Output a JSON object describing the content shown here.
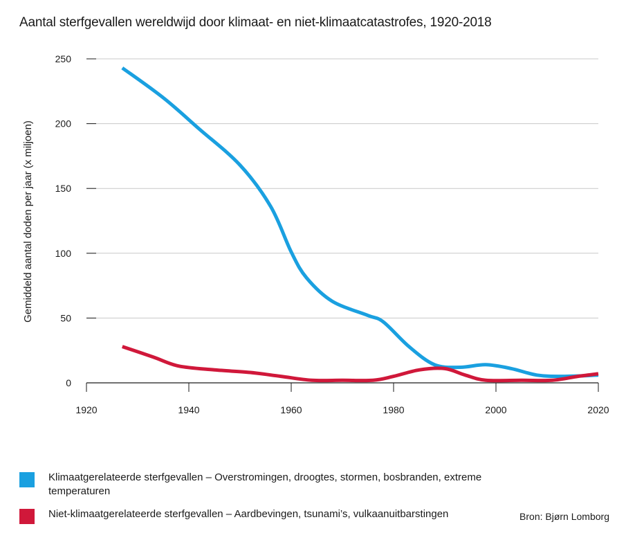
{
  "title": "Aantal sterfgevallen wereldwijd door klimaat- en niet-klimaatcatastrofes, 1920-2018",
  "source": "Bron: Bjørn Lomborg",
  "chart_data": {
    "type": "line",
    "title": "Aantal sterfgevallen wereldwijd door klimaat- en niet-klimaatcatastrofes, 1920-2018",
    "xlabel": "",
    "ylabel": "Gemiddeld aantal doden per jaar (x miljoen)",
    "xlim": [
      1920,
      2020
    ],
    "ylim": [
      0,
      250
    ],
    "xticks": [
      1920,
      1940,
      1960,
      1980,
      2000,
      2020
    ],
    "yticks": [
      0,
      50,
      100,
      150,
      200,
      250
    ],
    "grid": "horizontal",
    "legend_position": "bottom",
    "series": [
      {
        "name": "Klimaatgerelateerde sterfgevallen – Overstromingen, droogtes, stormen, bosbranden, extreme temperaturen",
        "color": "#1aa0e0",
        "x": [
          1927,
          1935,
          1942,
          1950,
          1956,
          1960,
          1963,
          1968,
          1975,
          1978,
          1983,
          1988,
          1993,
          1998,
          2003,
          2008,
          2013,
          2020
        ],
        "y": [
          243,
          220,
          196,
          168,
          136,
          101,
          81,
          63,
          52,
          47,
          28,
          14,
          12,
          14,
          11,
          6,
          5,
          6
        ]
      },
      {
        "name": "Niet-klimaatgerelateerde sterfgevallen – Aardbevingen, tsunami's, vulkaanuitbarstingen",
        "color": "#d0183a",
        "x": [
          1927,
          1933,
          1938,
          1945,
          1952,
          1958,
          1964,
          1970,
          1976,
          1980,
          1985,
          1990,
          1994,
          1998,
          2005,
          2011,
          2016,
          2020
        ],
        "y": [
          28,
          20,
          13,
          10,
          8,
          5,
          2,
          2,
          2,
          5,
          10,
          11,
          6,
          2,
          2,
          2,
          5,
          7
        ]
      }
    ]
  },
  "legend": [
    {
      "label": "Klimaatgerelateerde sterfgevallen – Overstromingen, droogtes, stormen, bosbranden, extreme temperaturen",
      "color": "#1aa0e0"
    },
    {
      "label": "Niet-klimaatgerelateerde sterfgevallen – Aardbevingen, tsunami’s, vulkaanuitbarstingen",
      "color": "#d0183a"
    }
  ]
}
